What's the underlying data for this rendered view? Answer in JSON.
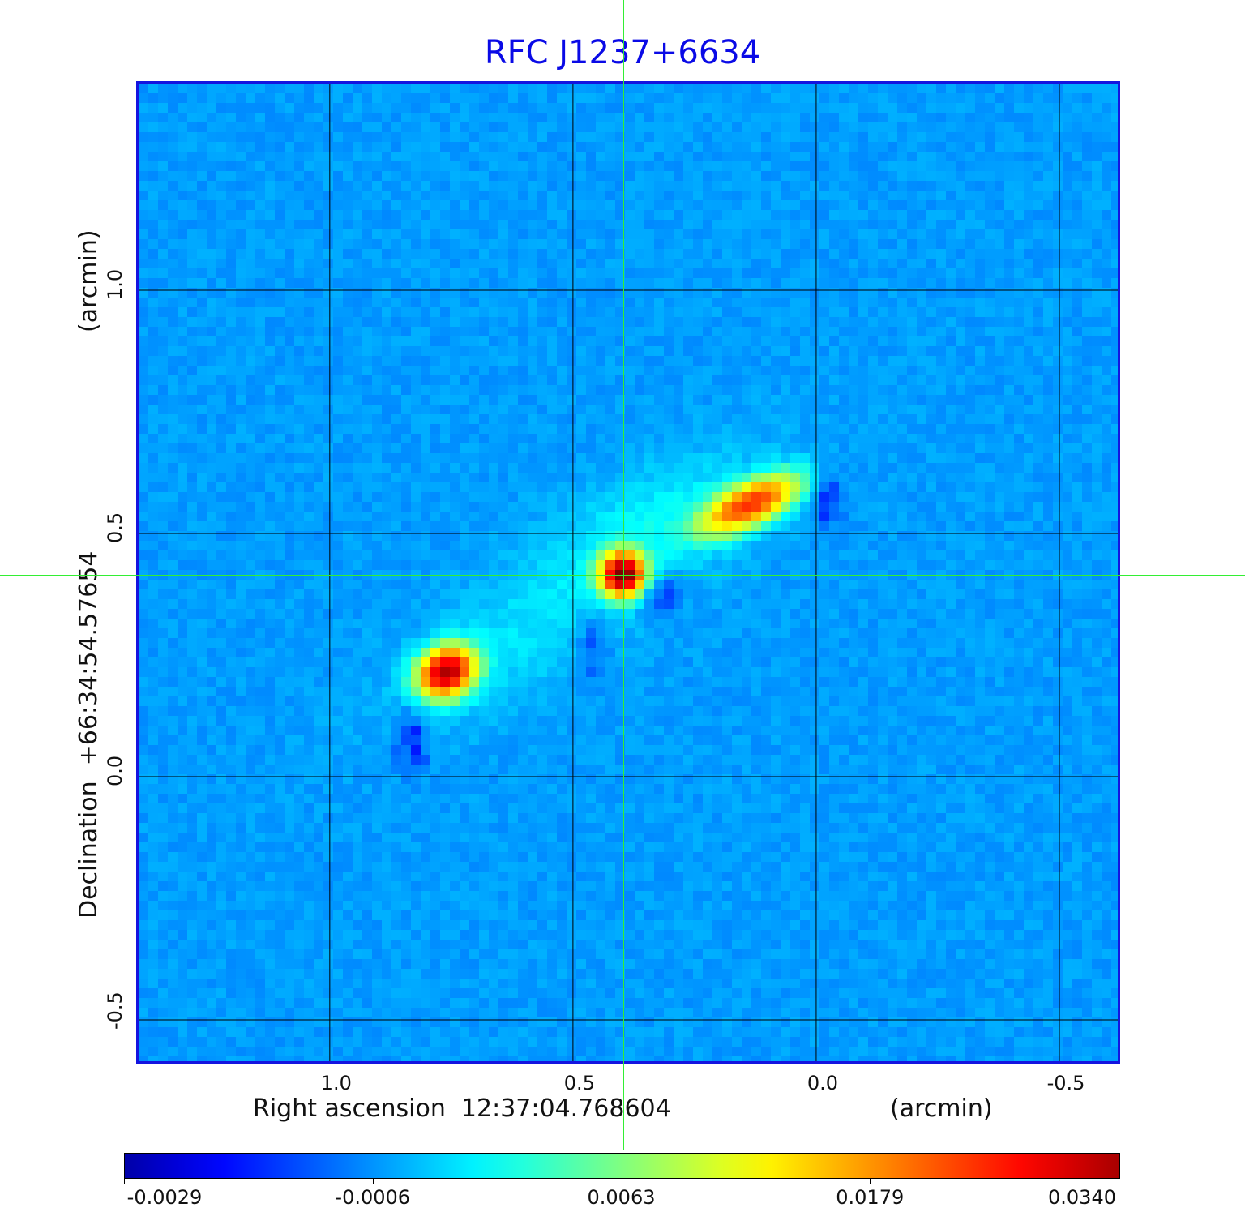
{
  "chart_data": {
    "type": "heatmap",
    "title": "RFC J1237+6634",
    "xlabel": "Right ascension  12:37:04.768604",
    "xunit": "(arcmin)",
    "ylabel": "Declination  +66:34:54.57654",
    "yunit": "(arcmin)",
    "xlim": [
      1.393,
      -0.62
    ],
    "ylim": [
      -0.585,
      1.425
    ],
    "grid": true,
    "xticks": [
      {
        "v": 1.0,
        "label": "1.0"
      },
      {
        "v": 0.5,
        "label": "0.5"
      },
      {
        "v": 0.0,
        "label": "0.0"
      },
      {
        "v": -0.5,
        "label": "-0.5"
      }
    ],
    "yticks": [
      {
        "v": 1.0,
        "label": "1.0"
      },
      {
        "v": 0.5,
        "label": "0.5"
      },
      {
        "v": 0.0,
        "label": "0.0"
      },
      {
        "v": -0.5,
        "label": "-0.5"
      }
    ],
    "crosshair": {
      "x": 0.397,
      "y": 0.415
    },
    "colormap": "jet",
    "colorbar": {
      "ticks": [
        "-0.0029",
        "-0.0006",
        "0.0063",
        "0.0179",
        "0.0340"
      ],
      "values": [
        -0.0029,
        -0.0006,
        0.0063,
        0.0179,
        0.034
      ],
      "placement": "bottom"
    },
    "background_level": 0.0002,
    "components": [
      {
        "name": "core",
        "x": 0.397,
        "y": 0.415,
        "peak": 0.034,
        "sx": 0.03,
        "sy": 0.03,
        "angle": 0
      },
      {
        "name": "jet-knot-nw",
        "x": 0.135,
        "y": 0.56,
        "peak": 0.022,
        "sx": 0.07,
        "sy": 0.028,
        "angle": 25
      },
      {
        "name": "jet-knot-se",
        "x": 0.76,
        "y": 0.215,
        "peak": 0.03,
        "sx": 0.04,
        "sy": 0.032,
        "angle": 30
      },
      {
        "name": "diffuse-nw",
        "x": 0.32,
        "y": 0.52,
        "peak": 0.0025,
        "sx": 0.17,
        "sy": 0.08,
        "angle": 25
      },
      {
        "name": "diffuse-se",
        "x": 0.62,
        "y": 0.28,
        "peak": 0.0018,
        "sx": 0.2,
        "sy": 0.08,
        "angle": 30
      },
      {
        "name": "neg-1",
        "x": 0.335,
        "y": 0.383,
        "peak": -0.0032,
        "sx": 0.04,
        "sy": 0.03,
        "angle": 0
      },
      {
        "name": "neg-2",
        "x": 0.83,
        "y": 0.08,
        "peak": -0.0022,
        "sx": 0.025,
        "sy": 0.05,
        "angle": 0
      },
      {
        "name": "neg-3",
        "x": 0.46,
        "y": 0.28,
        "peak": -0.0018,
        "sx": 0.025,
        "sy": 0.06,
        "angle": 0
      },
      {
        "name": "neg-4",
        "x": -0.02,
        "y": 0.58,
        "peak": -0.0018,
        "sx": 0.025,
        "sy": 0.05,
        "angle": 0
      }
    ]
  }
}
